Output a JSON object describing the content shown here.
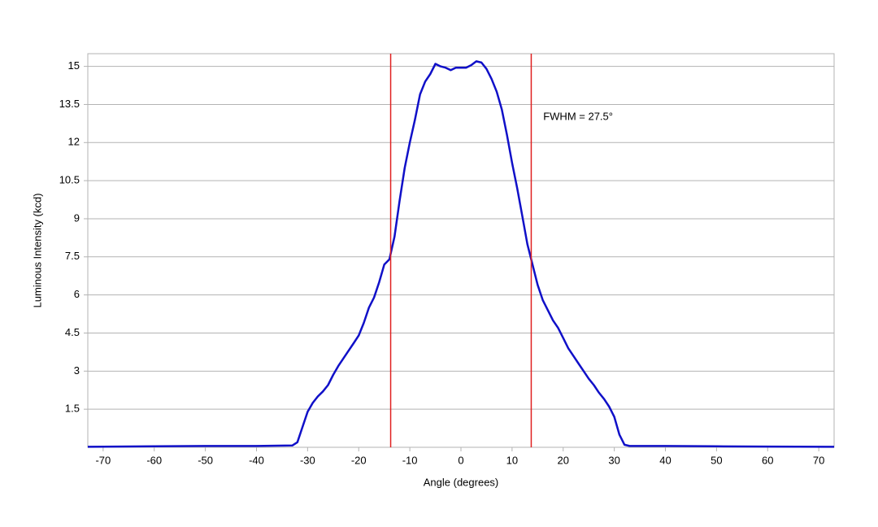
{
  "chart_data": {
    "type": "line",
    "xlabel": "Angle (degrees)",
    "ylabel": "Luminous Intensity (kcd)",
    "x": [
      -73,
      -60,
      -50,
      -40,
      -33,
      -32,
      -31,
      -30,
      -29,
      -28,
      -27,
      -26,
      -25,
      -24,
      -23,
      -22,
      -21,
      -20,
      -19,
      -18,
      -17,
      -16,
      -15,
      -14,
      -13,
      -12,
      -11,
      -10,
      -9,
      -8,
      -7,
      -6,
      -5,
      -4,
      -3,
      -2,
      -1,
      0,
      1,
      2,
      3,
      4,
      5,
      6,
      7,
      8,
      9,
      10,
      11,
      12,
      13,
      14,
      15,
      16,
      17,
      18,
      19,
      20,
      21,
      22,
      23,
      24,
      25,
      26,
      27,
      28,
      29,
      30,
      31,
      32,
      33,
      40,
      50,
      60,
      73
    ],
    "values": [
      0.02,
      0.04,
      0.05,
      0.05,
      0.07,
      0.2,
      0.8,
      1.4,
      1.75,
      2.0,
      2.2,
      2.45,
      2.85,
      3.2,
      3.5,
      3.8,
      4.1,
      4.4,
      4.9,
      5.5,
      5.9,
      6.5,
      7.2,
      7.4,
      8.3,
      9.7,
      11.0,
      12.0,
      12.9,
      13.9,
      14.4,
      14.7,
      15.1,
      15.0,
      14.95,
      14.85,
      14.95,
      14.95,
      14.95,
      15.05,
      15.2,
      15.15,
      14.9,
      14.5,
      14.0,
      13.3,
      12.3,
      11.2,
      10.2,
      9.1,
      8.0,
      7.2,
      6.4,
      5.8,
      5.4,
      5.0,
      4.7,
      4.3,
      3.9,
      3.6,
      3.3,
      3.0,
      2.7,
      2.45,
      2.15,
      1.9,
      1.6,
      1.2,
      0.5,
      0.1,
      0.05,
      0.05,
      0.04,
      0.03,
      0.02
    ],
    "color": "#1010c8",
    "vlines": [
      -13.75,
      13.75
    ],
    "vline_color": "#e02020",
    "annotation": {
      "text": "FWHM = 27.5°",
      "x": 16.1,
      "y": 13.0
    },
    "xlim": [
      -73,
      73
    ],
    "xticks": [
      -70,
      -60,
      -50,
      -40,
      -30,
      -20,
      -10,
      0,
      10,
      20,
      30,
      40,
      50,
      60,
      70
    ],
    "ylim": [
      0,
      15.5
    ],
    "yticks": [
      1.5,
      3,
      4.5,
      6,
      7.5,
      9,
      10.5,
      12,
      13.5,
      15
    ],
    "grid": true
  }
}
